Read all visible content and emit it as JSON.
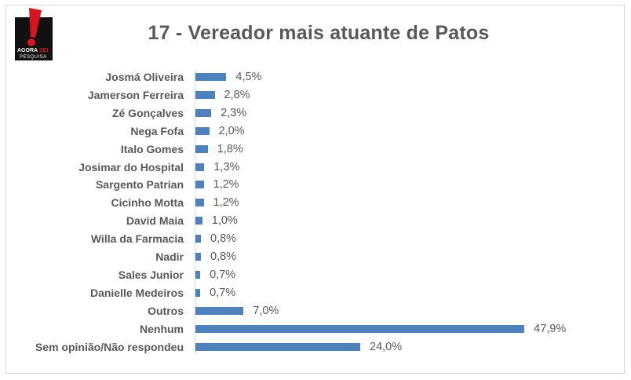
{
  "logo": {
    "icon": "exclamation-logo",
    "line1": "AGORA",
    "line1_accent": "SEI",
    "line2": "PESQUISA",
    "colors": {
      "bg": "#111111",
      "mark": "#d7141f",
      "text": "#ffffff"
    }
  },
  "title": "17 - Vereador mais atuante de Patos",
  "chart_data": {
    "type": "bar",
    "orientation": "horizontal",
    "title": "17 - Vereador mais atuante de Patos",
    "xlabel": "",
    "ylabel": "",
    "grid": false,
    "legend": null,
    "bar_color": "#4f81bd",
    "unit": "%",
    "categories": [
      "Josmá Oliveira",
      "Jamerson Ferreira",
      "Zé Gonçalves",
      "Nega Fofa",
      "Italo Gomes",
      "Josimar do Hospital",
      "Sargento Patrian",
      "Cicinho Motta",
      "David Maia",
      "Willa da Farmacia",
      "Nadir",
      "Sales Junior",
      "Danielle Medeiros",
      "Outros",
      "Nenhum",
      "Sem opinião/Não respondeu"
    ],
    "values": [
      4.5,
      2.8,
      2.3,
      2.0,
      1.8,
      1.3,
      1.2,
      1.2,
      1.0,
      0.8,
      0.8,
      0.7,
      0.7,
      7.0,
      47.9,
      24.0
    ],
    "value_labels": [
      "4,5%",
      "2,8%",
      "2,3%",
      "2,0%",
      "1,8%",
      "1,3%",
      "1,2%",
      "1,2%",
      "1,0%",
      "0,8%",
      "0,8%",
      "0,7%",
      "0,7%",
      "7,0%",
      "47,9%",
      "24,0%"
    ],
    "xlim": [
      0,
      48
    ]
  }
}
